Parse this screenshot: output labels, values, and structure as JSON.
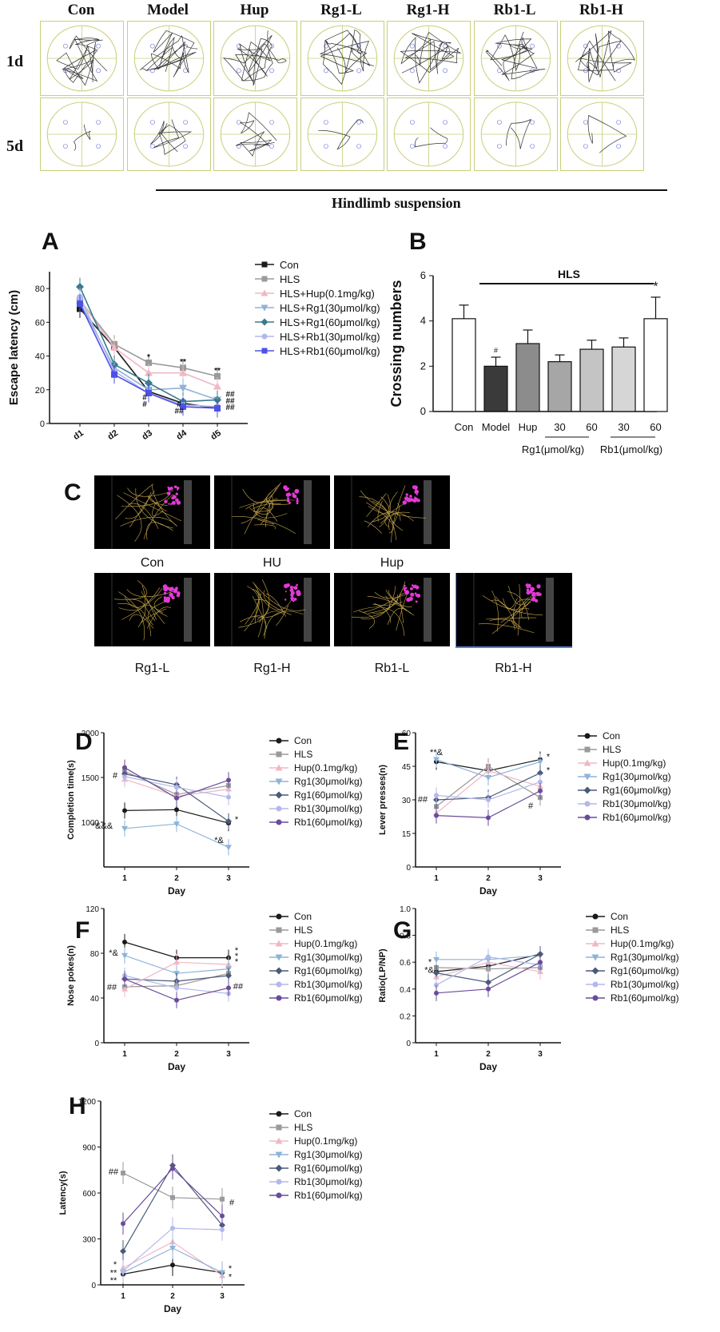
{
  "tracking_grid": {
    "columns": [
      "Con",
      "Model",
      "Hup",
      "Rg1-L",
      "Rg1-H",
      "Rb1-L",
      "Rb1-H"
    ],
    "rows": [
      "1d",
      "5d"
    ],
    "bracket_label": "Hindlimb suspension"
  },
  "panel_letters": {
    "A": "A",
    "B": "B",
    "C": "C",
    "D": "D",
    "E": "E",
    "F": "F",
    "G": "G",
    "H": "H"
  },
  "colors": {
    "Con": "#1a1a1a",
    "HLS": "#9a9a9a",
    "Hup": "#f0b8c4",
    "Rg1L": "#8fb3d9",
    "Rg1H": "#3a7a8c",
    "Rb1L": "#b3b8ec",
    "Rb1H": "#4d52e6",
    "purple_dark": "#6a4c9c",
    "slate": "#4a5a7a"
  },
  "panel_C": {
    "top_labels": [
      "Con",
      "HU",
      "Hup"
    ],
    "bottom_labels": [
      "Rg1-L",
      "Rg1-H",
      "Rb1-L",
      "Rb1-H"
    ]
  },
  "chart_data": [
    {
      "id": "A",
      "type": "line",
      "ylabel": "Escape latency (cm)",
      "xlabel": "",
      "categories": [
        "d1",
        "d2",
        "d3",
        "d4",
        "d5"
      ],
      "ylim": [
        0,
        90
      ],
      "yticks": [
        0,
        20,
        40,
        60,
        80
      ],
      "series": [
        {
          "name": "Con",
          "values": [
            68,
            45,
            19,
            12,
            9
          ]
        },
        {
          "name": "HLS",
          "values": [
            73,
            47,
            36,
            33,
            28
          ]
        },
        {
          "name": "HLS+Hup(0.1mg/kg)",
          "values": [
            73,
            45,
            30,
            30,
            22
          ]
        },
        {
          "name": "HLS+Rg1(30μmol/kg)",
          "values": [
            72,
            33,
            20,
            21,
            14
          ]
        },
        {
          "name": "HLS+Rg1(60μmol/kg)",
          "values": [
            81,
            35,
            24,
            13,
            14
          ]
        },
        {
          "name": "HLS+Rb1(30μmol/kg)",
          "values": [
            75,
            31,
            18,
            11,
            10
          ]
        },
        {
          "name": "HLS+Rb1(60μmol/kg)",
          "values": [
            71,
            29,
            18,
            10,
            9
          ]
        }
      ],
      "annotations": [
        "*",
        "**",
        "**",
        "#",
        "#",
        "#",
        "##",
        "##",
        "##",
        "##"
      ]
    },
    {
      "id": "B",
      "type": "bar",
      "ylabel": "Crossing numbers",
      "categories": [
        "Con",
        "Model",
        "Hup",
        "30",
        "60",
        "30",
        "60"
      ],
      "values": [
        4.1,
        2.0,
        3.0,
        2.2,
        2.75,
        2.85,
        4.1
      ],
      "errors": [
        0.6,
        0.4,
        0.6,
        0.3,
        0.4,
        0.4,
        0.95
      ],
      "ylim": [
        0,
        6
      ],
      "yticks": [
        0,
        2,
        4,
        6
      ],
      "group_labels": [
        "Rg1(μmol/kg)",
        "Rb1(μmol/kg)"
      ],
      "bracket_label": "HLS",
      "annotations": [
        "#",
        "*"
      ]
    },
    {
      "id": "D",
      "type": "line",
      "ylabel": "Completion time(s)",
      "xlabel": "Day",
      "categories": [
        "1",
        "2",
        "3"
      ],
      "ylim": [
        500,
        2000
      ],
      "yticks": [
        1000,
        1500,
        2000
      ],
      "series": [
        {
          "name": "Con",
          "values": [
            1130,
            1140,
            990
          ]
        },
        {
          "name": "HLS",
          "values": [
            1570,
            1310,
            1410
          ]
        },
        {
          "name": "Hup(0.1mg/kg)",
          "values": [
            1480,
            1290,
            1370
          ]
        },
        {
          "name": "Rg1(30μmol/kg)",
          "values": [
            930,
            980,
            720
          ]
        },
        {
          "name": "Rg1(60μmol/kg)",
          "values": [
            1540,
            1420,
            1010
          ]
        },
        {
          "name": "Rb1(30μmol/kg)",
          "values": [
            1510,
            1390,
            1280
          ]
        },
        {
          "name": "Rb1(60μmol/kg)",
          "values": [
            1610,
            1270,
            1470
          ]
        }
      ],
      "annotations": [
        "#",
        "*&&&",
        "*&",
        "*"
      ]
    },
    {
      "id": "E",
      "type": "line",
      "ylabel": "Lever presses(n)",
      "xlabel": "Day",
      "categories": [
        "1",
        "2",
        "3"
      ],
      "ylim": [
        0,
        60
      ],
      "yticks": [
        0,
        15,
        30,
        45,
        60
      ],
      "series": [
        {
          "name": "Con",
          "values": [
            47,
            43,
            48
          ]
        },
        {
          "name": "HLS",
          "values": [
            27,
            45,
            31
          ]
        },
        {
          "name": "Hup(0.1mg/kg)",
          "values": [
            24,
            43,
            36
          ]
        },
        {
          "name": "Rg1(30μmol/kg)",
          "values": [
            48,
            40,
            47
          ]
        },
        {
          "name": "Rg1(60μmol/kg)",
          "values": [
            30,
            31,
            42
          ]
        },
        {
          "name": "Rb1(30μmol/kg)",
          "values": [
            32,
            30,
            38
          ]
        },
        {
          "name": "Rb1(60μmol/kg)",
          "values": [
            23,
            22,
            34
          ]
        }
      ],
      "annotations": [
        "**&",
        "##",
        "#",
        "*",
        "*"
      ]
    },
    {
      "id": "F",
      "type": "line",
      "ylabel": "Nose pokes(n)",
      "xlabel": "Day",
      "categories": [
        "1",
        "2",
        "3"
      ],
      "ylim": [
        0,
        120
      ],
      "yticks": [
        0,
        40,
        80,
        120
      ],
      "series": [
        {
          "name": "Con",
          "values": [
            90,
            76,
            76
          ]
        },
        {
          "name": "HLS",
          "values": [
            50,
            51,
            62
          ]
        },
        {
          "name": "Hup(0.1mg/kg)",
          "values": [
            48,
            72,
            70
          ]
        },
        {
          "name": "Rg1(30μmol/kg)",
          "values": [
            78,
            62,
            66
          ]
        },
        {
          "name": "Rg1(60μmol/kg)",
          "values": [
            57,
            55,
            60
          ]
        },
        {
          "name": "Rb1(30μmol/kg)",
          "values": [
            60,
            49,
            44
          ]
        },
        {
          "name": "Rb1(60μmol/kg)",
          "values": [
            57,
            38,
            49
          ]
        }
      ],
      "annotations": [
        "*&",
        "##",
        "*",
        "*",
        "*",
        "##"
      ]
    },
    {
      "id": "G",
      "type": "line",
      "ylabel": "Ratio(LP/NP)",
      "xlabel": "Day",
      "categories": [
        "1",
        "2",
        "3"
      ],
      "ylim": [
        0,
        1.0
      ],
      "yticks": [
        0,
        0.2,
        0.4,
        0.6,
        0.8,
        1.0
      ],
      "ytick_labels": [
        "0",
        "0.2",
        "0.4",
        "0.6",
        "0.8",
        "1.0"
      ],
      "series": [
        {
          "name": "Con",
          "values": [
            0.53,
            0.57,
            0.66
          ]
        },
        {
          "name": "HLS",
          "values": [
            0.56,
            0.55,
            0.56
          ]
        },
        {
          "name": "Hup(0.1mg/kg)",
          "values": [
            0.49,
            0.6,
            0.53
          ]
        },
        {
          "name": "Rg1(30μmol/kg)",
          "values": [
            0.62,
            0.62,
            0.65
          ]
        },
        {
          "name": "Rg1(60μmol/kg)",
          "values": [
            0.52,
            0.45,
            0.66
          ]
        },
        {
          "name": "Rb1(30μmol/kg)",
          "values": [
            0.43,
            0.64,
            0.58
          ]
        },
        {
          "name": "Rb1(60μmol/kg)",
          "values": [
            0.37,
            0.4,
            0.6
          ]
        }
      ],
      "annotations": [
        "*",
        "*&"
      ]
    },
    {
      "id": "H",
      "type": "line",
      "ylabel": "Latency(s)",
      "xlabel": "Day",
      "categories": [
        "1",
        "2",
        "3"
      ],
      "ylim": [
        0,
        1200
      ],
      "yticks": [
        0,
        300,
        600,
        900,
        1200
      ],
      "series": [
        {
          "name": "Con",
          "values": [
            70,
            130,
            80
          ]
        },
        {
          "name": "HLS",
          "values": [
            730,
            570,
            560
          ]
        },
        {
          "name": "Hup(0.1mg/kg)",
          "values": [
            110,
            280,
            60
          ]
        },
        {
          "name": "Rg1(30μmol/kg)",
          "values": [
            80,
            240,
            80
          ]
        },
        {
          "name": "Rg1(60μmol/kg)",
          "values": [
            220,
            780,
            390
          ]
        },
        {
          "name": "Rb1(30μmol/kg)",
          "values": [
            90,
            370,
            360
          ]
        },
        {
          "name": "Rb1(60μmol/kg)",
          "values": [
            400,
            760,
            450
          ]
        }
      ],
      "annotations": [
        "##",
        "*",
        "**",
        "**",
        "#",
        "*",
        "*"
      ]
    }
  ]
}
